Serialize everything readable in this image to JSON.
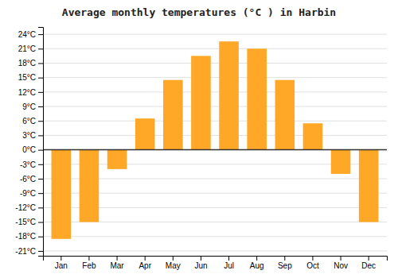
{
  "chart_data": {
    "type": "bar",
    "title": "Average monthly temperatures (°C ) in Harbin",
    "categories": [
      "Jan",
      "Feb",
      "Mar",
      "Apr",
      "May",
      "Jun",
      "Jul",
      "Aug",
      "Sep",
      "Oct",
      "Nov",
      "Dec"
    ],
    "values": [
      -18.5,
      -15.0,
      -4.0,
      6.5,
      14.5,
      19.5,
      22.5,
      21.0,
      14.5,
      5.5,
      -5.0,
      -15.0
    ],
    "color": "#FFA726",
    "ylim": [
      -22,
      25.5
    ],
    "yticks": [
      {
        "value": -21,
        "label": "-21°C"
      },
      {
        "value": -18,
        "label": "-18°C"
      },
      {
        "value": -15,
        "label": "-15°C"
      },
      {
        "value": -12,
        "label": "-12°C"
      },
      {
        "value": -9,
        "label": "-9°C"
      },
      {
        "value": -6,
        "label": "-6°C"
      },
      {
        "value": -3,
        "label": "-3°C"
      },
      {
        "value": 0,
        "label": "0°C"
      },
      {
        "value": 3,
        "label": "3°C"
      },
      {
        "value": 6,
        "label": "6°C"
      },
      {
        "value": 9,
        "label": "9°C"
      },
      {
        "value": 12,
        "label": "12°C"
      },
      {
        "value": 15,
        "label": "15°C"
      },
      {
        "value": 18,
        "label": "18°C"
      },
      {
        "value": 21,
        "label": "21°C"
      },
      {
        "value": 24,
        "label": "24°C"
      }
    ],
    "grid": true
  }
}
